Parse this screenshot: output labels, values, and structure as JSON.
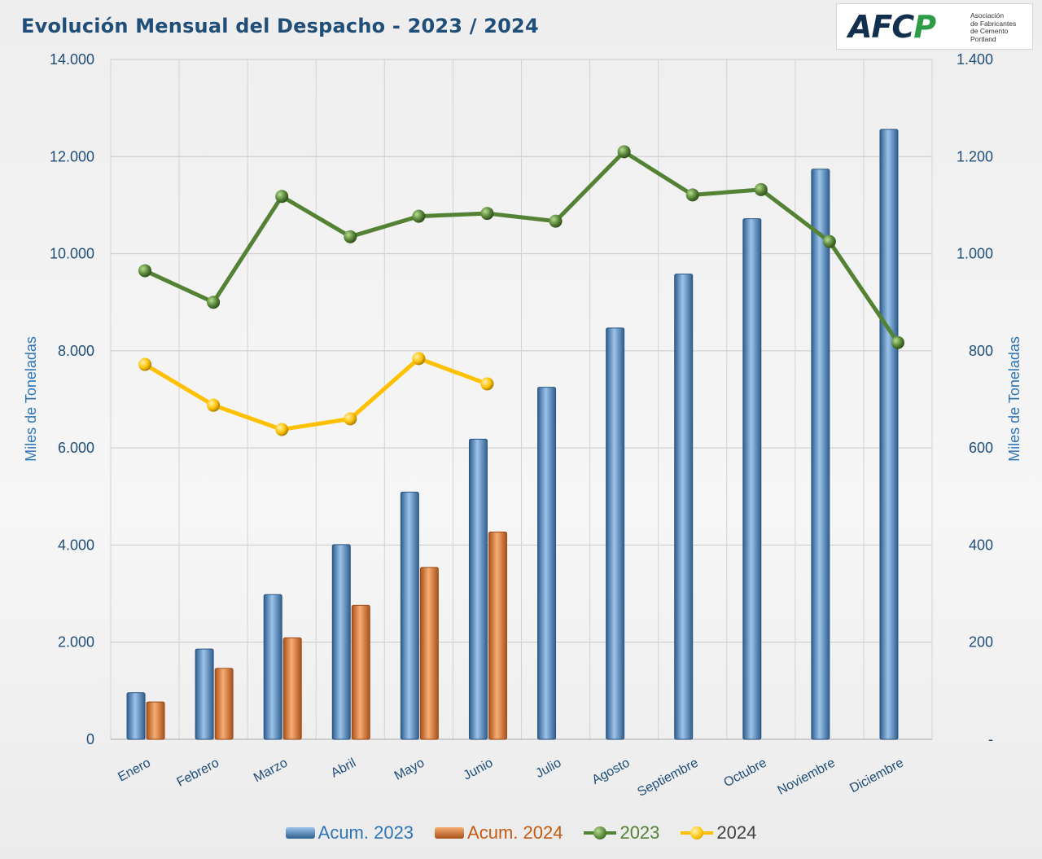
{
  "title": "Evolución Mensual del Despacho - 2023 / 2024",
  "logo": {
    "mark_left": "AFC",
    "mark_right": "P",
    "text_lines": [
      "Asociación",
      "de Fabricantes",
      "de Cemento",
      "Portland"
    ]
  },
  "colors": {
    "acum_2023": "#5b9bd5",
    "acum_2024": "#ed7d31",
    "line_2023": "#548235",
    "line_2024": "#ffc000",
    "axis_text": "#1f4e79",
    "axis_title": "#2e75b6"
  },
  "chart_data": {
    "type": "bar",
    "categories": [
      "Enero",
      "Febrero",
      "Marzo",
      "Abril",
      "Mayo",
      "Junio",
      "Julio",
      "Agosto",
      "Septiembre",
      "Octubre",
      "Noviembre",
      "Diciembre"
    ],
    "series": [
      {
        "name": "Acum. 2023",
        "type": "bar",
        "axis": "left",
        "values": [
          960,
          1860,
          2980,
          4010,
          5090,
          6180,
          7250,
          8470,
          9580,
          10720,
          11740,
          12560
        ]
      },
      {
        "name": "Acum. 2024",
        "type": "bar",
        "axis": "left",
        "values": [
          770,
          1460,
          2090,
          2760,
          3540,
          4270,
          null,
          null,
          null,
          null,
          null,
          null
        ]
      },
      {
        "name": "2023",
        "type": "line",
        "axis": "right",
        "values": [
          965,
          900,
          1118,
          1035,
          1077,
          1083,
          1067,
          1210,
          1121,
          1132,
          1025,
          817
        ]
      },
      {
        "name": "2024",
        "type": "line",
        "axis": "right",
        "values": [
          772,
          688,
          638,
          660,
          784,
          732,
          null,
          null,
          null,
          null,
          null,
          null
        ]
      }
    ],
    "left_axis": {
      "label": "Miles de Toneladas",
      "min": 0,
      "max": 14000,
      "ticks": [
        "0",
        "2.000",
        "4.000",
        "6.000",
        "8.000",
        "10.000",
        "12.000",
        "14.000"
      ]
    },
    "right_axis": {
      "label": "Miles de Toneladas",
      "min": 0,
      "max": 1400,
      "ticks": [
        "-",
        "200",
        "400",
        "600",
        "800",
        "1.000",
        "1.200",
        "1.400"
      ]
    },
    "grid": true,
    "legend_position": "bottom"
  }
}
